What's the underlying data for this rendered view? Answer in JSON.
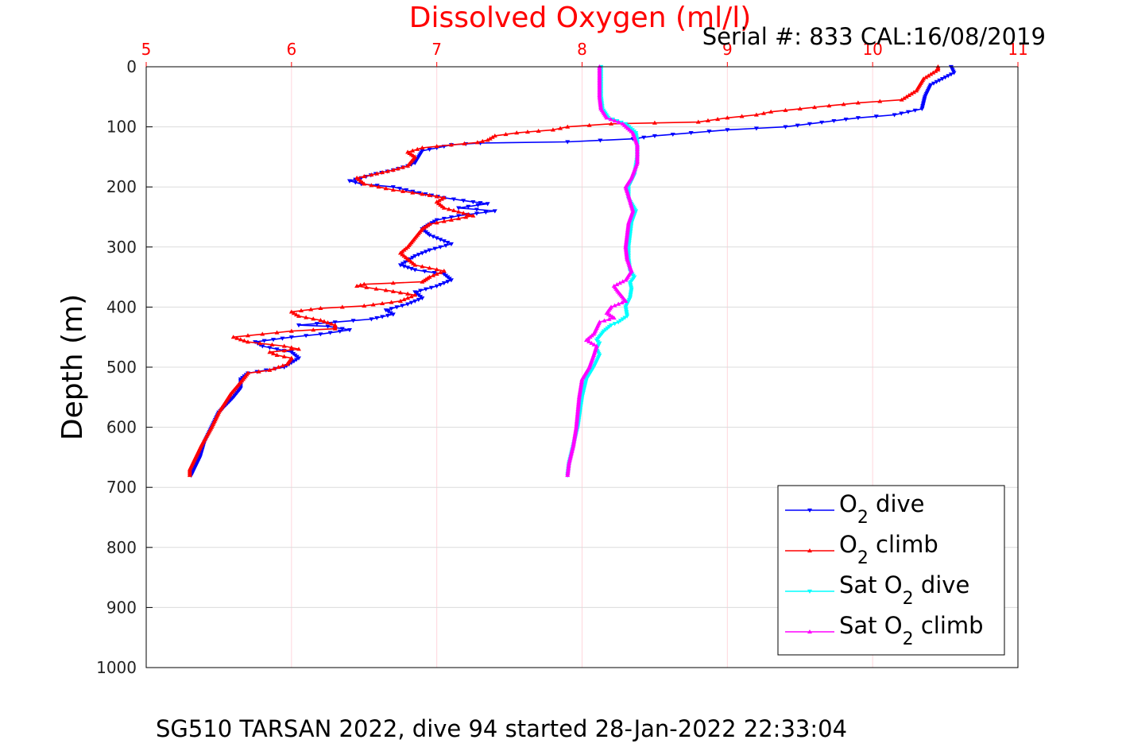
{
  "chart_data": {
    "type": "line",
    "title": "Dissolved Oxygen (ml/l)",
    "subtitle": "Serial #: 833  CAL:16/08/2019",
    "ylabel": "Depth (m)",
    "caption": "SG510 TARSAN 2022, dive 94 started 28-Jan-2022 22:33:04",
    "xlim": [
      5,
      11
    ],
    "ylim": [
      0,
      1000
    ],
    "y_reversed": true,
    "x_axis_position": "top",
    "x_ticks": [
      "5",
      "6",
      "7",
      "8",
      "9",
      "10",
      "11"
    ],
    "y_ticks": [
      "0",
      "100",
      "200",
      "300",
      "400",
      "500",
      "600",
      "700",
      "800",
      "900",
      "1000"
    ],
    "grid": true,
    "legend_position": "bottom-right",
    "colors": {
      "title": "#ff0000",
      "x_ticks": "#ff0000",
      "grid": "#ffd6dc",
      "o2_dive": "#0000ff",
      "o2_climb": "#ff0000",
      "sat_dive": "#00ffff",
      "sat_climb": "#ff00ff"
    },
    "legend": [
      {
        "base": "O",
        "sub": "2",
        "after": " dive",
        "color": "#0000ff",
        "marker": "down"
      },
      {
        "base": "O",
        "sub": "2",
        "after": " climb",
        "color": "#ff0000",
        "marker": "up"
      },
      {
        "base": "Sat O",
        "sub": "2",
        "after": " dive",
        "color": "#00ffff",
        "marker": "down"
      },
      {
        "base": "Sat O",
        "sub": "2",
        "after": " climb",
        "color": "#ff00ff",
        "marker": "up"
      }
    ],
    "series": [
      {
        "key": "o2_dive",
        "color": "#0000ff",
        "marker": "down",
        "points": [
          [
            10.54,
            0
          ],
          [
            10.56,
            10
          ],
          [
            10.4,
            30
          ],
          [
            10.36,
            50
          ],
          [
            10.34,
            70
          ],
          [
            10.15,
            80
          ],
          [
            9.9,
            85
          ],
          [
            9.4,
            100
          ],
          [
            9.0,
            105
          ],
          [
            8.5,
            115
          ],
          [
            8.35,
            120
          ],
          [
            7.9,
            125
          ],
          [
            7.3,
            127
          ],
          [
            7.1,
            130
          ],
          [
            6.9,
            140
          ],
          [
            6.85,
            160
          ],
          [
            6.8,
            165
          ],
          [
            6.7,
            172
          ],
          [
            6.58,
            178
          ],
          [
            6.48,
            185
          ],
          [
            6.4,
            190
          ],
          [
            6.48,
            195
          ],
          [
            6.7,
            200
          ],
          [
            6.88,
            210
          ],
          [
            7.05,
            218
          ],
          [
            7.25,
            225
          ],
          [
            7.35,
            228
          ],
          [
            7.15,
            235
          ],
          [
            7.4,
            240
          ],
          [
            7.15,
            248
          ],
          [
            7.0,
            255
          ],
          [
            6.95,
            262
          ],
          [
            6.9,
            270
          ],
          [
            6.95,
            280
          ],
          [
            7.1,
            295
          ],
          [
            6.95,
            305
          ],
          [
            6.85,
            315
          ],
          [
            6.75,
            330
          ],
          [
            6.85,
            338
          ],
          [
            7.05,
            345
          ],
          [
            7.1,
            355
          ],
          [
            7.0,
            365
          ],
          [
            6.85,
            375
          ],
          [
            6.9,
            385
          ],
          [
            6.8,
            395
          ],
          [
            6.65,
            405
          ],
          [
            6.7,
            412
          ],
          [
            6.55,
            420
          ],
          [
            6.3,
            425
          ],
          [
            6.05,
            430
          ],
          [
            6.25,
            432
          ],
          [
            6.4,
            438
          ],
          [
            6.2,
            445
          ],
          [
            6.0,
            450
          ],
          [
            5.75,
            458
          ],
          [
            5.8,
            465
          ],
          [
            6.0,
            475
          ],
          [
            6.05,
            485
          ],
          [
            5.95,
            500
          ],
          [
            5.7,
            510
          ],
          [
            5.65,
            520
          ],
          [
            5.65,
            535
          ],
          [
            5.6,
            550
          ],
          [
            5.5,
            575
          ],
          [
            5.45,
            600
          ],
          [
            5.4,
            625
          ],
          [
            5.37,
            650
          ],
          [
            5.33,
            670
          ],
          [
            5.31,
            680
          ]
        ]
      },
      {
        "key": "o2_climb",
        "color": "#ff0000",
        "marker": "up",
        "points": [
          [
            10.45,
            0
          ],
          [
            10.45,
            5
          ],
          [
            10.35,
            20
          ],
          [
            10.3,
            40
          ],
          [
            10.2,
            55
          ],
          [
            9.9,
            60
          ],
          [
            9.5,
            70
          ],
          [
            9.3,
            75
          ],
          [
            9.2,
            80
          ],
          [
            9.0,
            85
          ],
          [
            8.8,
            92
          ],
          [
            8.2,
            95
          ],
          [
            7.9,
            100
          ],
          [
            7.8,
            105
          ],
          [
            7.7,
            107
          ],
          [
            7.55,
            110
          ],
          [
            7.4,
            115
          ],
          [
            7.35,
            122
          ],
          [
            7.28,
            126
          ],
          [
            7.1,
            130
          ],
          [
            6.9,
            135
          ],
          [
            6.8,
            142
          ],
          [
            6.85,
            150
          ],
          [
            6.8,
            165
          ],
          [
            6.7,
            172
          ],
          [
            6.55,
            180
          ],
          [
            6.45,
            185
          ],
          [
            6.5,
            195
          ],
          [
            6.7,
            205
          ],
          [
            6.9,
            212
          ],
          [
            7.05,
            218
          ],
          [
            7.0,
            225
          ],
          [
            7.05,
            235
          ],
          [
            7.25,
            248
          ],
          [
            7.1,
            255
          ],
          [
            6.95,
            262
          ],
          [
            6.9,
            270
          ],
          [
            6.85,
            285
          ],
          [
            6.8,
            300
          ],
          [
            6.75,
            310
          ],
          [
            6.8,
            320
          ],
          [
            6.85,
            330
          ],
          [
            7.05,
            340
          ],
          [
            6.95,
            350
          ],
          [
            6.9,
            358
          ],
          [
            6.5,
            362
          ],
          [
            6.45,
            365
          ],
          [
            6.65,
            372
          ],
          [
            6.85,
            380
          ],
          [
            6.75,
            390
          ],
          [
            6.5,
            398
          ],
          [
            6.2,
            402
          ],
          [
            6.0,
            408
          ],
          [
            6.05,
            415
          ],
          [
            6.2,
            422
          ],
          [
            6.3,
            430
          ],
          [
            6.3,
            436
          ],
          [
            6.0,
            440
          ],
          [
            5.8,
            445
          ],
          [
            5.6,
            450
          ],
          [
            5.7,
            458
          ],
          [
            5.95,
            465
          ],
          [
            6.05,
            470
          ],
          [
            5.85,
            475
          ],
          [
            5.9,
            480
          ],
          [
            6.0,
            485
          ],
          [
            5.97,
            495
          ],
          [
            5.85,
            505
          ],
          [
            5.7,
            510
          ],
          [
            5.65,
            525
          ],
          [
            5.58,
            545
          ],
          [
            5.5,
            575
          ],
          [
            5.45,
            600
          ],
          [
            5.38,
            630
          ],
          [
            5.33,
            655
          ],
          [
            5.3,
            670
          ],
          [
            5.3,
            680
          ]
        ]
      },
      {
        "key": "sat_dive",
        "color": "#00ffff",
        "marker": "down",
        "points": [
          [
            8.13,
            0
          ],
          [
            8.13,
            50
          ],
          [
            8.14,
            70
          ],
          [
            8.18,
            85
          ],
          [
            8.3,
            95
          ],
          [
            8.37,
            110
          ],
          [
            8.38,
            125
          ],
          [
            8.38,
            150
          ],
          [
            8.36,
            180
          ],
          [
            8.32,
            200
          ],
          [
            8.32,
            220
          ],
          [
            8.37,
            240
          ],
          [
            8.34,
            260
          ],
          [
            8.33,
            280
          ],
          [
            8.32,
            300
          ],
          [
            8.32,
            320
          ],
          [
            8.33,
            340
          ],
          [
            8.36,
            350
          ],
          [
            8.33,
            360
          ],
          [
            8.34,
            370
          ],
          [
            8.33,
            385
          ],
          [
            8.3,
            400
          ],
          [
            8.31,
            415
          ],
          [
            8.25,
            425
          ],
          [
            8.2,
            430
          ],
          [
            8.15,
            440
          ],
          [
            8.1,
            455
          ],
          [
            8.12,
            460
          ],
          [
            8.1,
            470
          ],
          [
            8.12,
            480
          ],
          [
            8.08,
            500
          ],
          [
            8.03,
            520
          ],
          [
            8.0,
            550
          ],
          [
            7.97,
            600
          ],
          [
            7.94,
            630
          ],
          [
            7.91,
            660
          ],
          [
            7.9,
            680
          ]
        ]
      },
      {
        "key": "sat_climb",
        "color": "#ff00ff",
        "marker": "up",
        "points": [
          [
            8.12,
            0
          ],
          [
            8.12,
            50
          ],
          [
            8.13,
            70
          ],
          [
            8.17,
            85
          ],
          [
            8.28,
            95
          ],
          [
            8.35,
            110
          ],
          [
            8.38,
            130
          ],
          [
            8.38,
            160
          ],
          [
            8.34,
            185
          ],
          [
            8.3,
            200
          ],
          [
            8.32,
            215
          ],
          [
            8.35,
            240
          ],
          [
            8.32,
            260
          ],
          [
            8.31,
            280
          ],
          [
            8.3,
            300
          ],
          [
            8.31,
            320
          ],
          [
            8.34,
            340
          ],
          [
            8.3,
            355
          ],
          [
            8.22,
            365
          ],
          [
            8.25,
            375
          ],
          [
            8.3,
            390
          ],
          [
            8.2,
            400
          ],
          [
            8.17,
            410
          ],
          [
            8.22,
            418
          ],
          [
            8.12,
            425
          ],
          [
            8.1,
            435
          ],
          [
            8.08,
            445
          ],
          [
            8.03,
            455
          ],
          [
            8.1,
            465
          ],
          [
            8.08,
            480
          ],
          [
            8.05,
            500
          ],
          [
            8.0,
            520
          ],
          [
            7.98,
            550
          ],
          [
            7.96,
            600
          ],
          [
            7.94,
            630
          ],
          [
            7.91,
            660
          ],
          [
            7.9,
            680
          ]
        ]
      }
    ]
  }
}
